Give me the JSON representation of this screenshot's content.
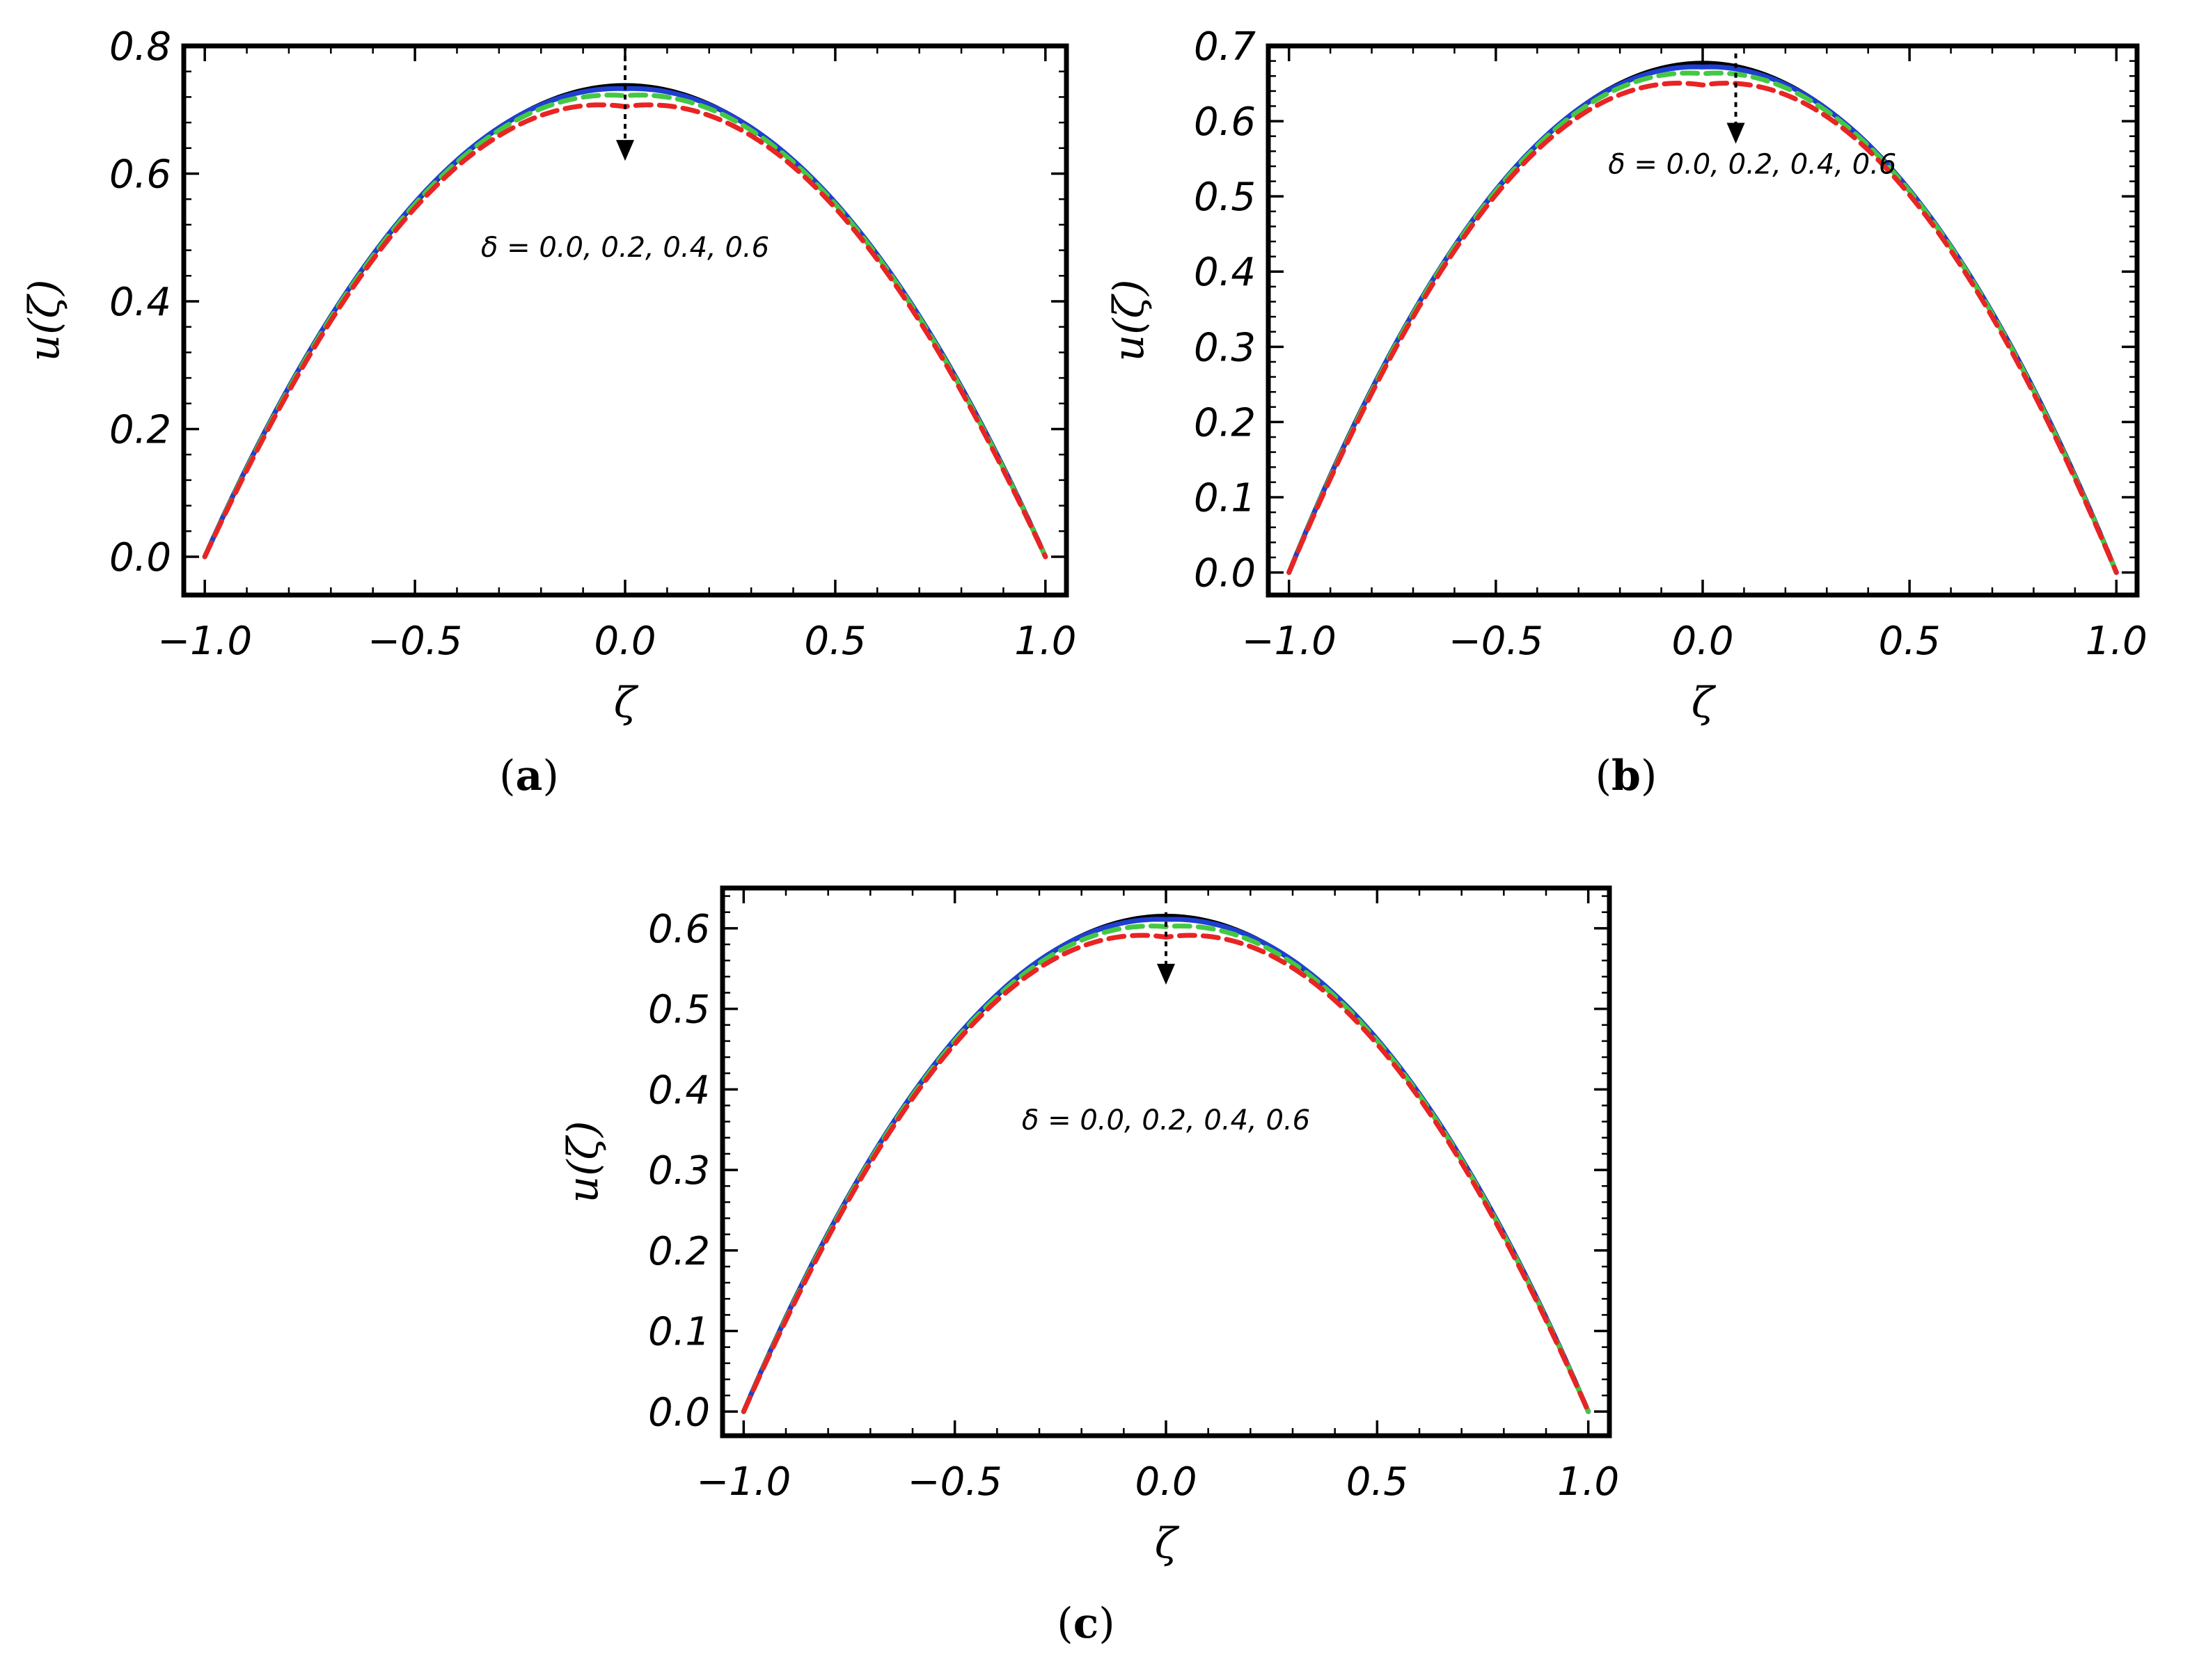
{
  "chart_data": [
    {
      "type": "line",
      "panel_label": "(a)",
      "panel_letter": "a",
      "xlabel": "ζ",
      "ylabel": "u(ζ)",
      "xlim": [
        -1.05,
        1.05
      ],
      "ylim": [
        -0.06,
        0.8
      ],
      "xticks": [
        -1.0,
        -0.5,
        0.0,
        0.5,
        1.0
      ],
      "xtick_labels": [
        "−1.0",
        "−0.5",
        "0.0",
        "0.5",
        "1.0"
      ],
      "yticks": [
        0.0,
        0.2,
        0.4,
        0.6,
        0.8
      ],
      "ytick_labels": [
        "0.0",
        "0.2",
        "0.4",
        "0.6",
        "0.8"
      ],
      "annotation": "δ = 0.0, 0.2, 0.4, 0.6",
      "arrow": {
        "x": 0.0,
        "y_from": 0.8,
        "y_to": 0.62
      },
      "series": [
        {
          "peak": 0.738,
          "shape": 0.0,
          "color": "#000000",
          "dash": "solid"
        },
        {
          "peak": 0.733,
          "shape": 0.06,
          "color": "#1f3fd1",
          "dash": "solid"
        },
        {
          "peak": 0.722,
          "shape": 0.13,
          "color": "#44c844",
          "dash": "dashed"
        },
        {
          "peak": 0.705,
          "shape": 0.22,
          "color": "#e82424",
          "dash": "dashed"
        }
      ]
    },
    {
      "type": "line",
      "panel_label": "(b)",
      "panel_letter": "b",
      "xlabel": "ζ",
      "ylabel": "u(ζ)",
      "xlim": [
        -1.05,
        1.05
      ],
      "ylim": [
        -0.03,
        0.7
      ],
      "xticks": [
        -1.0,
        -0.5,
        0.0,
        0.5,
        1.0
      ],
      "xtick_labels": [
        "−1.0",
        "−0.5",
        "0.0",
        "0.5",
        "1.0"
      ],
      "yticks": [
        0.0,
        0.1,
        0.2,
        0.3,
        0.4,
        0.5,
        0.6,
        0.7
      ],
      "ytick_labels": [
        "0.0",
        "0.1",
        "0.2",
        "0.3",
        "0.4",
        "0.5",
        "0.6",
        "0.7"
      ],
      "annotation": "δ = 0.0, 0.2, 0.4, 0.6",
      "arrow": {
        "x": 0.08,
        "y_from": 0.69,
        "y_to": 0.57
      },
      "series": [
        {
          "peak": 0.677,
          "shape": 0.0,
          "color": "#000000",
          "dash": "solid"
        },
        {
          "peak": 0.672,
          "shape": 0.06,
          "color": "#1f3fd1",
          "dash": "solid"
        },
        {
          "peak": 0.663,
          "shape": 0.13,
          "color": "#44c844",
          "dash": "dashed"
        },
        {
          "peak": 0.648,
          "shape": 0.22,
          "color": "#e82424",
          "dash": "dashed"
        }
      ]
    },
    {
      "type": "line",
      "panel_label": "(c)",
      "panel_letter": "c",
      "xlabel": "ζ",
      "ylabel": "u(ζ)",
      "xlim": [
        -1.05,
        1.05
      ],
      "ylim": [
        -0.03,
        0.65
      ],
      "xticks": [
        -1.0,
        -0.5,
        0.0,
        0.5,
        1.0
      ],
      "xtick_labels": [
        "−1.0",
        "−0.5",
        "0.0",
        "0.5",
        "1.0"
      ],
      "yticks": [
        0.0,
        0.1,
        0.2,
        0.3,
        0.4,
        0.5,
        0.6
      ],
      "ytick_labels": [
        "0.0",
        "0.1",
        "0.2",
        "0.3",
        "0.4",
        "0.5",
        "0.6"
      ],
      "annotation": "δ = 0.0, 0.2, 0.4, 0.6",
      "arrow": {
        "x": 0.0,
        "y_from": 0.62,
        "y_to": 0.53
      },
      "series": [
        {
          "peak": 0.615,
          "shape": 0.0,
          "color": "#000000",
          "dash": "solid"
        },
        {
          "peak": 0.611,
          "shape": 0.06,
          "color": "#1f3fd1",
          "dash": "solid"
        },
        {
          "peak": 0.602,
          "shape": 0.13,
          "color": "#44c844",
          "dash": "dashed"
        },
        {
          "peak": 0.589,
          "shape": 0.22,
          "color": "#e82424",
          "dash": "dashed"
        }
      ]
    }
  ]
}
